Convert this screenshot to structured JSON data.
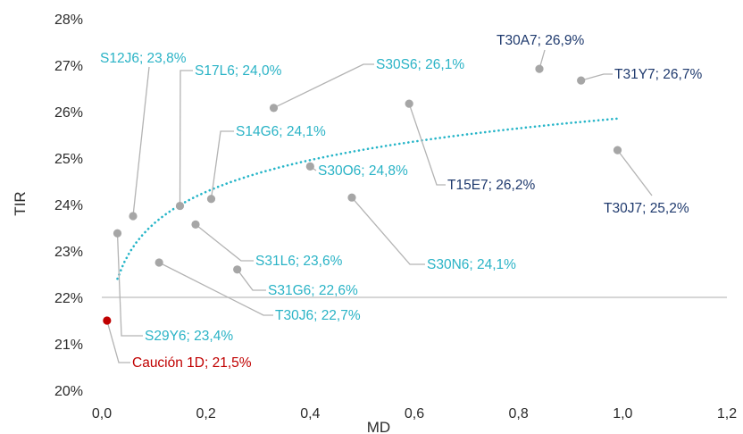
{
  "chart_data": {
    "type": "scatter",
    "xlabel": "MD",
    "ylabel": "TIR",
    "xlim": [
      0,
      1.2
    ],
    "ylim": [
      20,
      28
    ],
    "x_ticks": [
      "0,0",
      "0,2",
      "0,4",
      "0,6",
      "0,8",
      "1,0",
      "1,2"
    ],
    "y_ticks": [
      "20%",
      "21%",
      "22%",
      "23%",
      "24%",
      "25%",
      "26%",
      "27%",
      "28%"
    ],
    "reference_line": {
      "y": 22.0,
      "color": "#bdbdbd"
    },
    "trendline": {
      "type": "logarithmic",
      "style": "dotted",
      "color": "#26b5c8",
      "x_from": 0.03,
      "x_to": 0.99,
      "y_from": 22.4,
      "y_to": 25.85
    },
    "colors": {
      "point": "#a6a6a6",
      "point_highlight": "#c00000",
      "label_s": "#2ab3c6",
      "label_t": "#1f3a6e",
      "label_highlight": "#c00000",
      "leader": "#b3b3b3",
      "trend": "#26b5c8"
    },
    "points": [
      {
        "label": "Caución 1D; 21,5%",
        "x": 0.01,
        "y": 21.5,
        "group": "highlight"
      },
      {
        "label": "S29Y6; 23,4%",
        "x": 0.03,
        "y": 23.38,
        "group": "s"
      },
      {
        "label": "S12J6; 23,8%",
        "x": 0.06,
        "y": 23.75,
        "group": "s"
      },
      {
        "label": "T30J6; 22,7%",
        "x": 0.11,
        "y": 22.75,
        "group": "s"
      },
      {
        "label": "S17L6; 24,0%",
        "x": 0.15,
        "y": 23.97,
        "group": "s"
      },
      {
        "label": "S31L6; 23,6%",
        "x": 0.18,
        "y": 23.57,
        "group": "s"
      },
      {
        "label": "S14G6; 24,1%",
        "x": 0.21,
        "y": 24.12,
        "group": "s"
      },
      {
        "label": "S31G6; 22,6%",
        "x": 0.26,
        "y": 22.6,
        "group": "s"
      },
      {
        "label": "S30S6; 26,1%",
        "x": 0.33,
        "y": 26.08,
        "group": "s"
      },
      {
        "label": "S30O6; 24,8%",
        "x": 0.4,
        "y": 24.82,
        "group": "s"
      },
      {
        "label": "S30N6; 24,1%",
        "x": 0.48,
        "y": 24.15,
        "group": "s"
      },
      {
        "label": "T15E7; 26,2%",
        "x": 0.59,
        "y": 26.17,
        "group": "t"
      },
      {
        "label": "T30A7; 26,9%",
        "x": 0.84,
        "y": 26.92,
        "group": "t"
      },
      {
        "label": "T31Y7; 26,7%",
        "x": 0.92,
        "y": 26.67,
        "group": "t"
      },
      {
        "label": "T30J7; 25,2%",
        "x": 0.99,
        "y": 25.17,
        "group": "t"
      }
    ]
  }
}
